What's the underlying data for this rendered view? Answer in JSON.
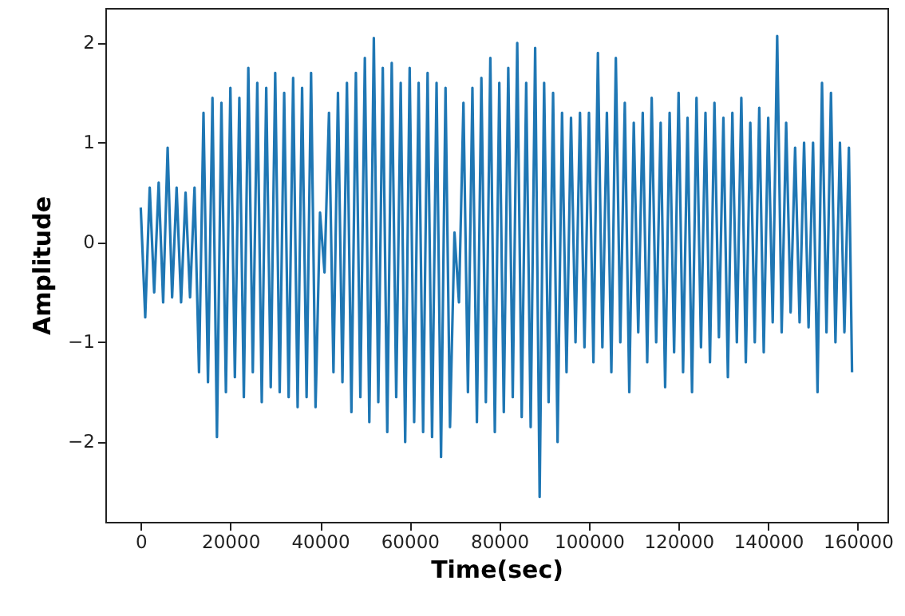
{
  "chart_data": {
    "type": "line",
    "xlabel": "Time(sec)",
    "ylabel": "Amplitude",
    "xlim": [
      -7900,
      166600
    ],
    "ylim": [
      -2.8,
      2.35
    ],
    "xticks": [
      0,
      20000,
      40000,
      60000,
      80000,
      100000,
      120000,
      140000,
      160000
    ],
    "yticks": [
      -2,
      -1,
      0,
      1,
      2
    ],
    "grid": false,
    "x": [
      0,
      1000,
      2000,
      3000,
      4000,
      5000,
      6000,
      7000,
      8000,
      9000,
      10000,
      11000,
      12000,
      13000,
      14000,
      15000,
      16000,
      17000,
      18000,
      19000,
      20000,
      21000,
      22000,
      23000,
      24000,
      25000,
      26000,
      27000,
      28000,
      29000,
      30000,
      31000,
      32000,
      33000,
      34000,
      35000,
      36000,
      37000,
      38000,
      39000,
      40000,
      41000,
      42000,
      43000,
      44000,
      45000,
      46000,
      47000,
      48000,
      49000,
      50000,
      51000,
      52000,
      53000,
      54000,
      55000,
      56000,
      57000,
      58000,
      59000,
      60000,
      61000,
      62000,
      63000,
      64000,
      65000,
      66000,
      67000,
      68000,
      69000,
      70000,
      71000,
      72000,
      73000,
      74000,
      75000,
      76000,
      77000,
      78000,
      79000,
      80000,
      81000,
      82000,
      83000,
      84000,
      85000,
      86000,
      87000,
      88000,
      89000,
      90000,
      91000,
      92000,
      93000,
      94000,
      95000,
      96000,
      97000,
      98000,
      99000,
      100000,
      101000,
      102000,
      103000,
      104000,
      105000,
      106000,
      107000,
      108000,
      109000,
      110000,
      111000,
      112000,
      113000,
      114000,
      115000,
      116000,
      117000,
      118000,
      119000,
      120000,
      121000,
      122000,
      123000,
      124000,
      125000,
      126000,
      127000,
      128000,
      129000,
      130000,
      131000,
      132000,
      133000,
      134000,
      135000,
      136000,
      137000,
      138000,
      139000,
      140000,
      141000,
      142000,
      143000,
      144000,
      145000,
      146000,
      147000,
      148000,
      149000,
      150000,
      151000,
      152000,
      153000,
      154000,
      155000,
      156000,
      157000,
      158000,
      158700
    ],
    "series": [
      {
        "color": "#1f77b4",
        "values": [
          0.35,
          -0.75,
          0.55,
          -0.5,
          0.6,
          -0.6,
          0.95,
          -0.55,
          0.55,
          -0.6,
          0.5,
          -0.55,
          0.55,
          -1.3,
          1.3,
          -1.4,
          1.45,
          -1.95,
          1.4,
          -1.5,
          1.55,
          -1.35,
          1.45,
          -1.55,
          1.75,
          -1.3,
          1.6,
          -1.6,
          1.55,
          -1.45,
          1.7,
          -1.5,
          1.5,
          -1.55,
          1.65,
          -1.65,
          1.55,
          -1.55,
          1.7,
          -1.65,
          0.3,
          -0.3,
          1.3,
          -1.3,
          1.5,
          -1.4,
          1.6,
          -1.7,
          1.7,
          -1.55,
          1.85,
          -1.8,
          2.05,
          -1.6,
          1.75,
          -1.9,
          1.8,
          -1.55,
          1.6,
          -2.0,
          1.75,
          -1.8,
          1.6,
          -1.9,
          1.7,
          -1.95,
          1.6,
          -2.15,
          1.55,
          -1.85,
          0.1,
          -0.6,
          1.4,
          -1.5,
          1.55,
          -1.8,
          1.65,
          -1.6,
          1.85,
          -1.9,
          1.6,
          -1.7,
          1.75,
          -1.55,
          2.0,
          -1.75,
          1.6,
          -1.85,
          1.95,
          -2.55,
          1.6,
          -1.6,
          1.5,
          -2.0,
          1.3,
          -1.3,
          1.25,
          -1.0,
          1.3,
          -1.05,
          1.3,
          -1.2,
          1.9,
          -1.05,
          1.3,
          -1.3,
          1.85,
          -1.0,
          1.4,
          -1.5,
          1.2,
          -0.9,
          1.3,
          -1.2,
          1.45,
          -1.0,
          1.2,
          -1.45,
          1.3,
          -1.1,
          1.5,
          -1.3,
          1.25,
          -1.5,
          1.45,
          -1.05,
          1.3,
          -1.2,
          1.4,
          -0.95,
          1.25,
          -1.35,
          1.3,
          -1.0,
          1.45,
          -1.2,
          1.2,
          -1.0,
          1.35,
          -1.1,
          1.25,
          -0.8,
          2.07,
          -0.9,
          1.2,
          -0.7,
          0.95,
          -0.8,
          1.0,
          -0.85,
          1.0,
          -1.5,
          1.6,
          -0.9,
          1.5,
          -1.0,
          1.0,
          -0.9,
          0.95,
          -1.3
        ]
      }
    ]
  }
}
